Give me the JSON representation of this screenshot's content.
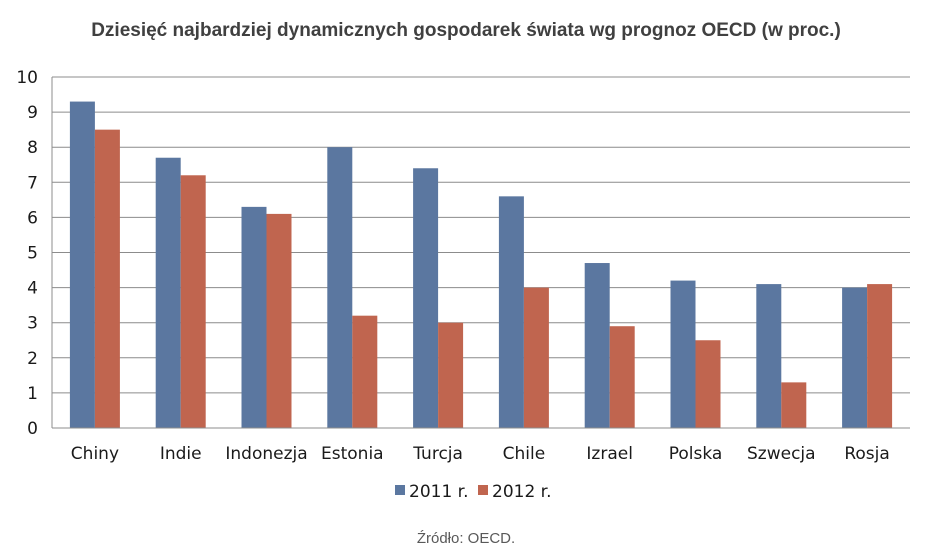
{
  "chart_data": {
    "type": "bar",
    "title": "Dziesięć najbardziej dynamicznych gospodarek świata wg prognoz OECD (w proc.)",
    "categories": [
      "Chiny",
      "Indie",
      "Indonezja",
      "Estonia",
      "Turcja",
      "Chile",
      "Izrael",
      "Polska",
      "Szwecja",
      "Rosja"
    ],
    "series": [
      {
        "name": "2011 r.",
        "color": "#5B77A0",
        "values": [
          9.3,
          7.7,
          6.3,
          8.0,
          7.4,
          6.6,
          4.7,
          4.2,
          4.1,
          4.0
        ]
      },
      {
        "name": "2012 r.",
        "color": "#C0654F",
        "values": [
          8.5,
          7.2,
          6.1,
          3.2,
          3.0,
          4.0,
          2.9,
          2.5,
          1.3,
          4.1
        ]
      }
    ],
    "ylim": [
      0,
      10
    ],
    "yticks": [
      "0",
      "1",
      "2",
      "3",
      "4",
      "5",
      "6",
      "7",
      "8",
      "9",
      "10"
    ],
    "grid": true,
    "legend_position": "bottom",
    "xlabel": "",
    "ylabel": ""
  },
  "source_note": "Źródło: OECD."
}
